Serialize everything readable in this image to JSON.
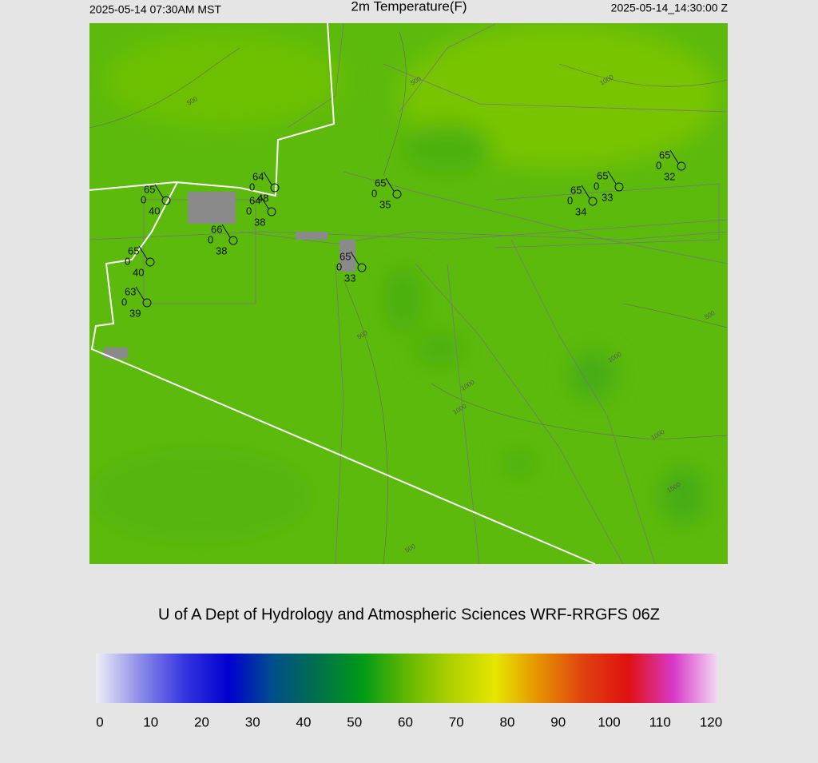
{
  "header": {
    "left": "2025-05-14 07:30AM MST",
    "title": "2m Temperature(F)",
    "right": "2025-05-14_14:30:00 Z"
  },
  "map": {
    "stations": [
      {
        "temp": 65,
        "pressure": 0,
        "dewpoint": 40
      },
      {
        "temp": 64,
        "pressure": 0,
        "dewpoint": 48
      },
      {
        "temp": 64,
        "pressure": 0,
        "dewpoint": 38
      },
      {
        "temp": 66,
        "pressure": 0,
        "dewpoint": 38
      },
      {
        "temp": 65,
        "pressure": 0,
        "dewpoint": 35
      },
      {
        "temp": 65,
        "pressure": 0,
        "dewpoint": 33
      },
      {
        "temp": 65,
        "pressure": 0,
        "dewpoint": 40
      },
      {
        "temp": 63,
        "pressure": 0,
        "dewpoint": 39
      },
      {
        "temp": 65,
        "pressure": 0,
        "dewpoint": 34
      },
      {
        "temp": 65,
        "pressure": 0,
        "dewpoint": 33
      },
      {
        "temp": 65,
        "pressure": 0,
        "dewpoint": 32
      }
    ],
    "contour_labels": [
      500,
      500,
      500,
      500,
      500,
      1000,
      1000,
      1000,
      1000,
      1000,
      1500
    ]
  },
  "credit": "U of A Dept of Hydrology and Atmospheric Sciences WRF-RRGFS 06Z",
  "colorbar": {
    "lim": [
      0,
      120
    ],
    "ticks": [
      0,
      10,
      20,
      30,
      40,
      50,
      60,
      70,
      80,
      90,
      100,
      110,
      120
    ],
    "colors": [
      "#eeeef6",
      "#8c8ce8",
      "#3434e0",
      "#0000d0",
      "#00508a",
      "#00704a",
      "#009a18",
      "#62b800",
      "#b0d000",
      "#e6e600",
      "#e69000",
      "#e04010",
      "#e01010",
      "#d838c8",
      "#f2d8f2"
    ]
  }
}
